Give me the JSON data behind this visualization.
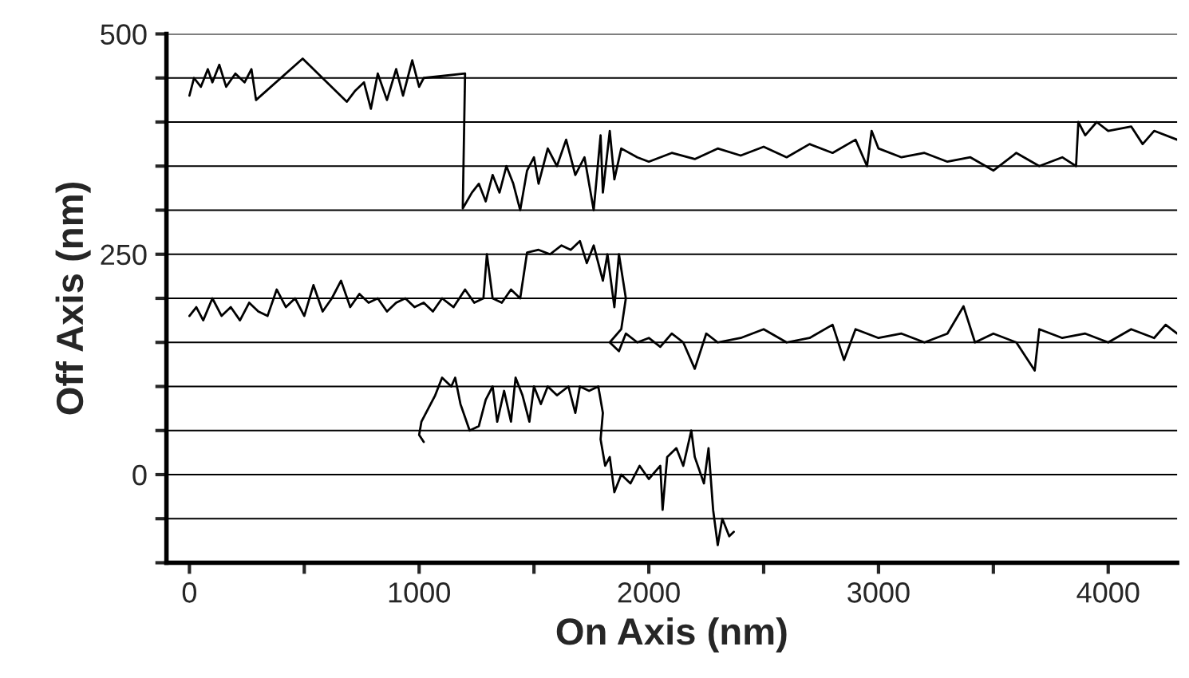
{
  "chart_data": {
    "type": "line",
    "xlabel": "On Axis (nm)",
    "ylabel": "Off Axis (nm)",
    "xlim": [
      -100,
      4300
    ],
    "ylim": [
      -100,
      500
    ],
    "xticks": [
      0,
      {
        "value": 500,
        "label": null
      },
      1000,
      {
        "value": 1500,
        "label": null
      },
      2000,
      {
        "value": 2500,
        "label": null
      },
      3000,
      {
        "value": 3500,
        "label": null
      },
      4000
    ],
    "yticks": [
      {
        "value": -100,
        "label": null
      },
      {
        "value": -50,
        "label": null
      },
      0,
      {
        "value": 50,
        "label": null
      },
      {
        "value": 100,
        "label": null
      },
      {
        "value": 150,
        "label": null
      },
      {
        "value": 200,
        "label": null
      },
      250,
      {
        "value": 300,
        "label": null
      },
      {
        "value": 350,
        "label": null
      },
      {
        "value": 400,
        "label": null
      },
      {
        "value": 450,
        "label": null
      },
      500
    ],
    "grid": "y",
    "legend": false,
    "marker": "none",
    "line_style": "solid",
    "series": [
      {
        "color": "#000000",
        "x": [
          0,
          20,
          50,
          80,
          100,
          130,
          160,
          200,
          240,
          270,
          290,
          493,
          685,
          720,
          760,
          790,
          820,
          860,
          900,
          930,
          970,
          1000,
          1020,
          1200,
          1190,
          1230,
          1260,
          1290,
          1320,
          1350,
          1380,
          1410,
          1440,
          1470,
          1500,
          1520,
          1560,
          1600,
          1640,
          1680,
          1720,
          1760,
          1790,
          1800,
          1830,
          1850,
          1880,
          1950,
          2000,
          2100,
          2200,
          2300,
          2400,
          2500,
          2600,
          2700,
          2800,
          2900,
          2950,
          2970,
          3000,
          3100,
          3200,
          3300,
          3400,
          3500,
          3600,
          3700,
          3800,
          3860,
          3870,
          3900,
          3950,
          4000,
          4100,
          4150,
          4200,
          4300
        ],
        "values": [
          430,
          450,
          440,
          460,
          445,
          465,
          440,
          455,
          445,
          460,
          425,
          472,
          423,
          435,
          445,
          415,
          455,
          425,
          460,
          430,
          470,
          440,
          450,
          455,
          302,
          320,
          330,
          310,
          340,
          320,
          350,
          330,
          300,
          345,
          360,
          330,
          370,
          350,
          380,
          340,
          360,
          300,
          385,
          320,
          390,
          335,
          370,
          360,
          355,
          365,
          358,
          370,
          362,
          372,
          360,
          375,
          365,
          380,
          350,
          390,
          370,
          360,
          365,
          355,
          360,
          345,
          365,
          350,
          360,
          350,
          400,
          385,
          400,
          390,
          395,
          375,
          390,
          380
        ]
      },
      {
        "color": "#000000",
        "x": [
          0,
          30,
          60,
          100,
          140,
          180,
          220,
          260,
          300,
          340,
          380,
          420,
          460,
          500,
          540,
          580,
          620,
          660,
          700,
          740,
          780,
          820,
          860,
          900,
          940,
          980,
          1020,
          1060,
          1100,
          1150,
          1200,
          1240,
          1280,
          1295,
          1320,
          1360,
          1400,
          1440,
          1470,
          1520,
          1570,
          1620,
          1660,
          1700,
          1730,
          1760,
          1800,
          1820,
          1850,
          1870,
          1900,
          1880,
          1830,
          1870,
          1900,
          1950,
          2000,
          2050,
          2100,
          2150,
          2200,
          2250,
          2300,
          2400,
          2500,
          2600,
          2700,
          2800,
          2850,
          2900,
          3000,
          3100,
          3200,
          3300,
          3370,
          3420,
          3500,
          3600,
          3680,
          3700,
          3800,
          3900,
          4000,
          4100,
          4200,
          4250,
          4300
        ],
        "values": [
          180,
          190,
          175,
          200,
          180,
          190,
          175,
          195,
          185,
          180,
          210,
          190,
          200,
          180,
          215,
          185,
          200,
          220,
          190,
          205,
          195,
          200,
          185,
          195,
          200,
          190,
          195,
          185,
          200,
          190,
          210,
          195,
          200,
          250,
          200,
          195,
          210,
          200,
          252,
          255,
          250,
          260,
          255,
          265,
          240,
          260,
          220,
          250,
          190,
          250,
          200,
          165,
          150,
          140,
          160,
          150,
          155,
          145,
          160,
          150,
          120,
          160,
          150,
          155,
          165,
          150,
          155,
          170,
          130,
          165,
          155,
          160,
          150,
          160,
          191,
          150,
          160,
          150,
          118,
          165,
          155,
          160,
          150,
          165,
          155,
          170,
          160
        ]
      },
      {
        "color": "#000000",
        "x": [
          1020,
          1000,
          1010,
          1040,
          1070,
          1100,
          1140,
          1157,
          1180,
          1220,
          1260,
          1290,
          1320,
          1340,
          1370,
          1400,
          1420,
          1450,
          1480,
          1500,
          1530,
          1560,
          1600,
          1650,
          1680,
          1700,
          1740,
          1780,
          1800,
          1790,
          1810,
          1830,
          1850,
          1880,
          1920,
          1960,
          2000,
          2050,
          2060,
          2080,
          2120,
          2150,
          2185,
          2200,
          2240,
          2260,
          2280,
          2300,
          2320,
          2350,
          2370
        ],
        "values": [
          37,
          45,
          60,
          75,
          90,
          110,
          100,
          110,
          80,
          50,
          55,
          85,
          100,
          60,
          95,
          60,
          110,
          90,
          60,
          100,
          80,
          100,
          90,
          100,
          70,
          100,
          95,
          100,
          70,
          40,
          10,
          20,
          -20,
          0,
          -10,
          10,
          -5,
          10,
          -40,
          20,
          30,
          10,
          50,
          20,
          -10,
          30,
          -40,
          -80,
          -50,
          -70,
          -65
        ]
      }
    ]
  }
}
